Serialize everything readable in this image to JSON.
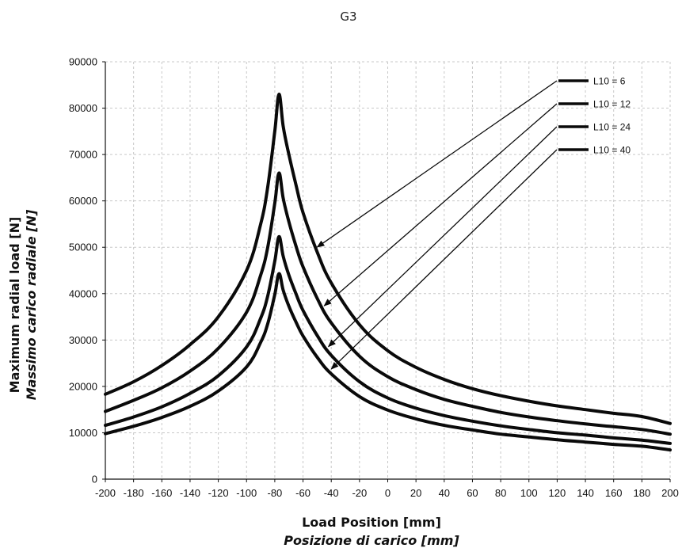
{
  "chart_data": {
    "type": "line",
    "title": "G3",
    "xlabel": "Load Position [mm]",
    "xlabel_it": "Posizione di carico [mm]",
    "ylabel": "Maximum radial load [N]",
    "ylabel_it": "Massimo carico radiale [N]",
    "xlim": [
      -200,
      200
    ],
    "ylim": [
      0,
      90000
    ],
    "xticks": [
      -200,
      -180,
      -160,
      -140,
      -120,
      -100,
      -80,
      -60,
      -40,
      -20,
      0,
      20,
      40,
      60,
      80,
      100,
      120,
      140,
      160,
      180,
      200
    ],
    "xtick_labels": [
      "-200",
      "-180",
      "-160",
      "-140",
      "-120",
      "-100",
      "-80",
      "-60",
      "-40",
      "-20",
      "0",
      "20",
      "40",
      "60",
      "80",
      "100",
      "120",
      "140",
      "160",
      "180",
      "200"
    ],
    "yticks": [
      0,
      10000,
      20000,
      30000,
      40000,
      50000,
      60000,
      70000,
      80000,
      90000
    ],
    "ytick_labels": [
      "0",
      "10000",
      "20000",
      "30000",
      "40000",
      "50000",
      "60000",
      "70000",
      "80000",
      "90000"
    ],
    "grid": true,
    "legend_position": "top-right",
    "series": [
      {
        "name": "L10 = 6",
        "x": [
          -200,
          -180,
          -160,
          -140,
          -120,
          -100,
          -90,
          -85,
          -80,
          -77,
          -74,
          -70,
          -65,
          -60,
          -50,
          -40,
          -20,
          0,
          20,
          40,
          60,
          80,
          100,
          120,
          140,
          160,
          180,
          200
        ],
        "y": [
          18300,
          21000,
          24500,
          29000,
          35000,
          45000,
          55000,
          63000,
          75000,
          83000,
          76000,
          70000,
          63500,
          57500,
          49000,
          42300,
          33300,
          27700,
          24100,
          21500,
          19500,
          18000,
          16800,
          15800,
          15000,
          14200,
          13500,
          12000
        ]
      },
      {
        "name": "L10 = 12",
        "x": [
          -200,
          -180,
          -160,
          -140,
          -120,
          -100,
          -90,
          -85,
          -80,
          -77,
          -74,
          -70,
          -65,
          -60,
          -50,
          -40,
          -20,
          0,
          20,
          40,
          60,
          80,
          100,
          120,
          140,
          160,
          180,
          200
        ],
        "y": [
          14600,
          17000,
          19700,
          23300,
          28200,
          36000,
          44000,
          50000,
          59500,
          66000,
          60500,
          55500,
          50300,
          45800,
          39000,
          33700,
          26500,
          22100,
          19300,
          17200,
          15700,
          14400,
          13400,
          12600,
          11900,
          11300,
          10700,
          9700
        ]
      },
      {
        "name": "L10 = 24",
        "x": [
          -200,
          -180,
          -160,
          -140,
          -120,
          -100,
          -90,
          -85,
          -80,
          -77,
          -74,
          -70,
          -65,
          -60,
          -50,
          -40,
          -20,
          0,
          20,
          40,
          60,
          80,
          100,
          120,
          140,
          160,
          180,
          200
        ],
        "y": [
          11600,
          13400,
          15600,
          18500,
          22300,
          28500,
          34700,
          39500,
          47000,
          52300,
          48000,
          44000,
          40000,
          36400,
          31000,
          26700,
          21000,
          17500,
          15300,
          13700,
          12500,
          11500,
          10700,
          10000,
          9500,
          8900,
          8400,
          7700
        ]
      },
      {
        "name": "L10 = 40",
        "x": [
          -200,
          -180,
          -160,
          -140,
          -120,
          -100,
          -90,
          -85,
          -80,
          -77,
          -74,
          -70,
          -65,
          -60,
          -50,
          -40,
          -20,
          0,
          20,
          40,
          60,
          80,
          100,
          120,
          140,
          160,
          180,
          200
        ],
        "y": [
          9800,
          11400,
          13300,
          15700,
          19000,
          24200,
          29500,
          33500,
          39800,
          44300,
          40700,
          37300,
          33900,
          30900,
          26300,
          22700,
          17800,
          14900,
          13000,
          11600,
          10600,
          9700,
          9100,
          8500,
          8000,
          7500,
          7100,
          6300
        ]
      }
    ],
    "colors": {
      "curve": "#0a0a0a",
      "grid": "#c8c8c8"
    }
  }
}
